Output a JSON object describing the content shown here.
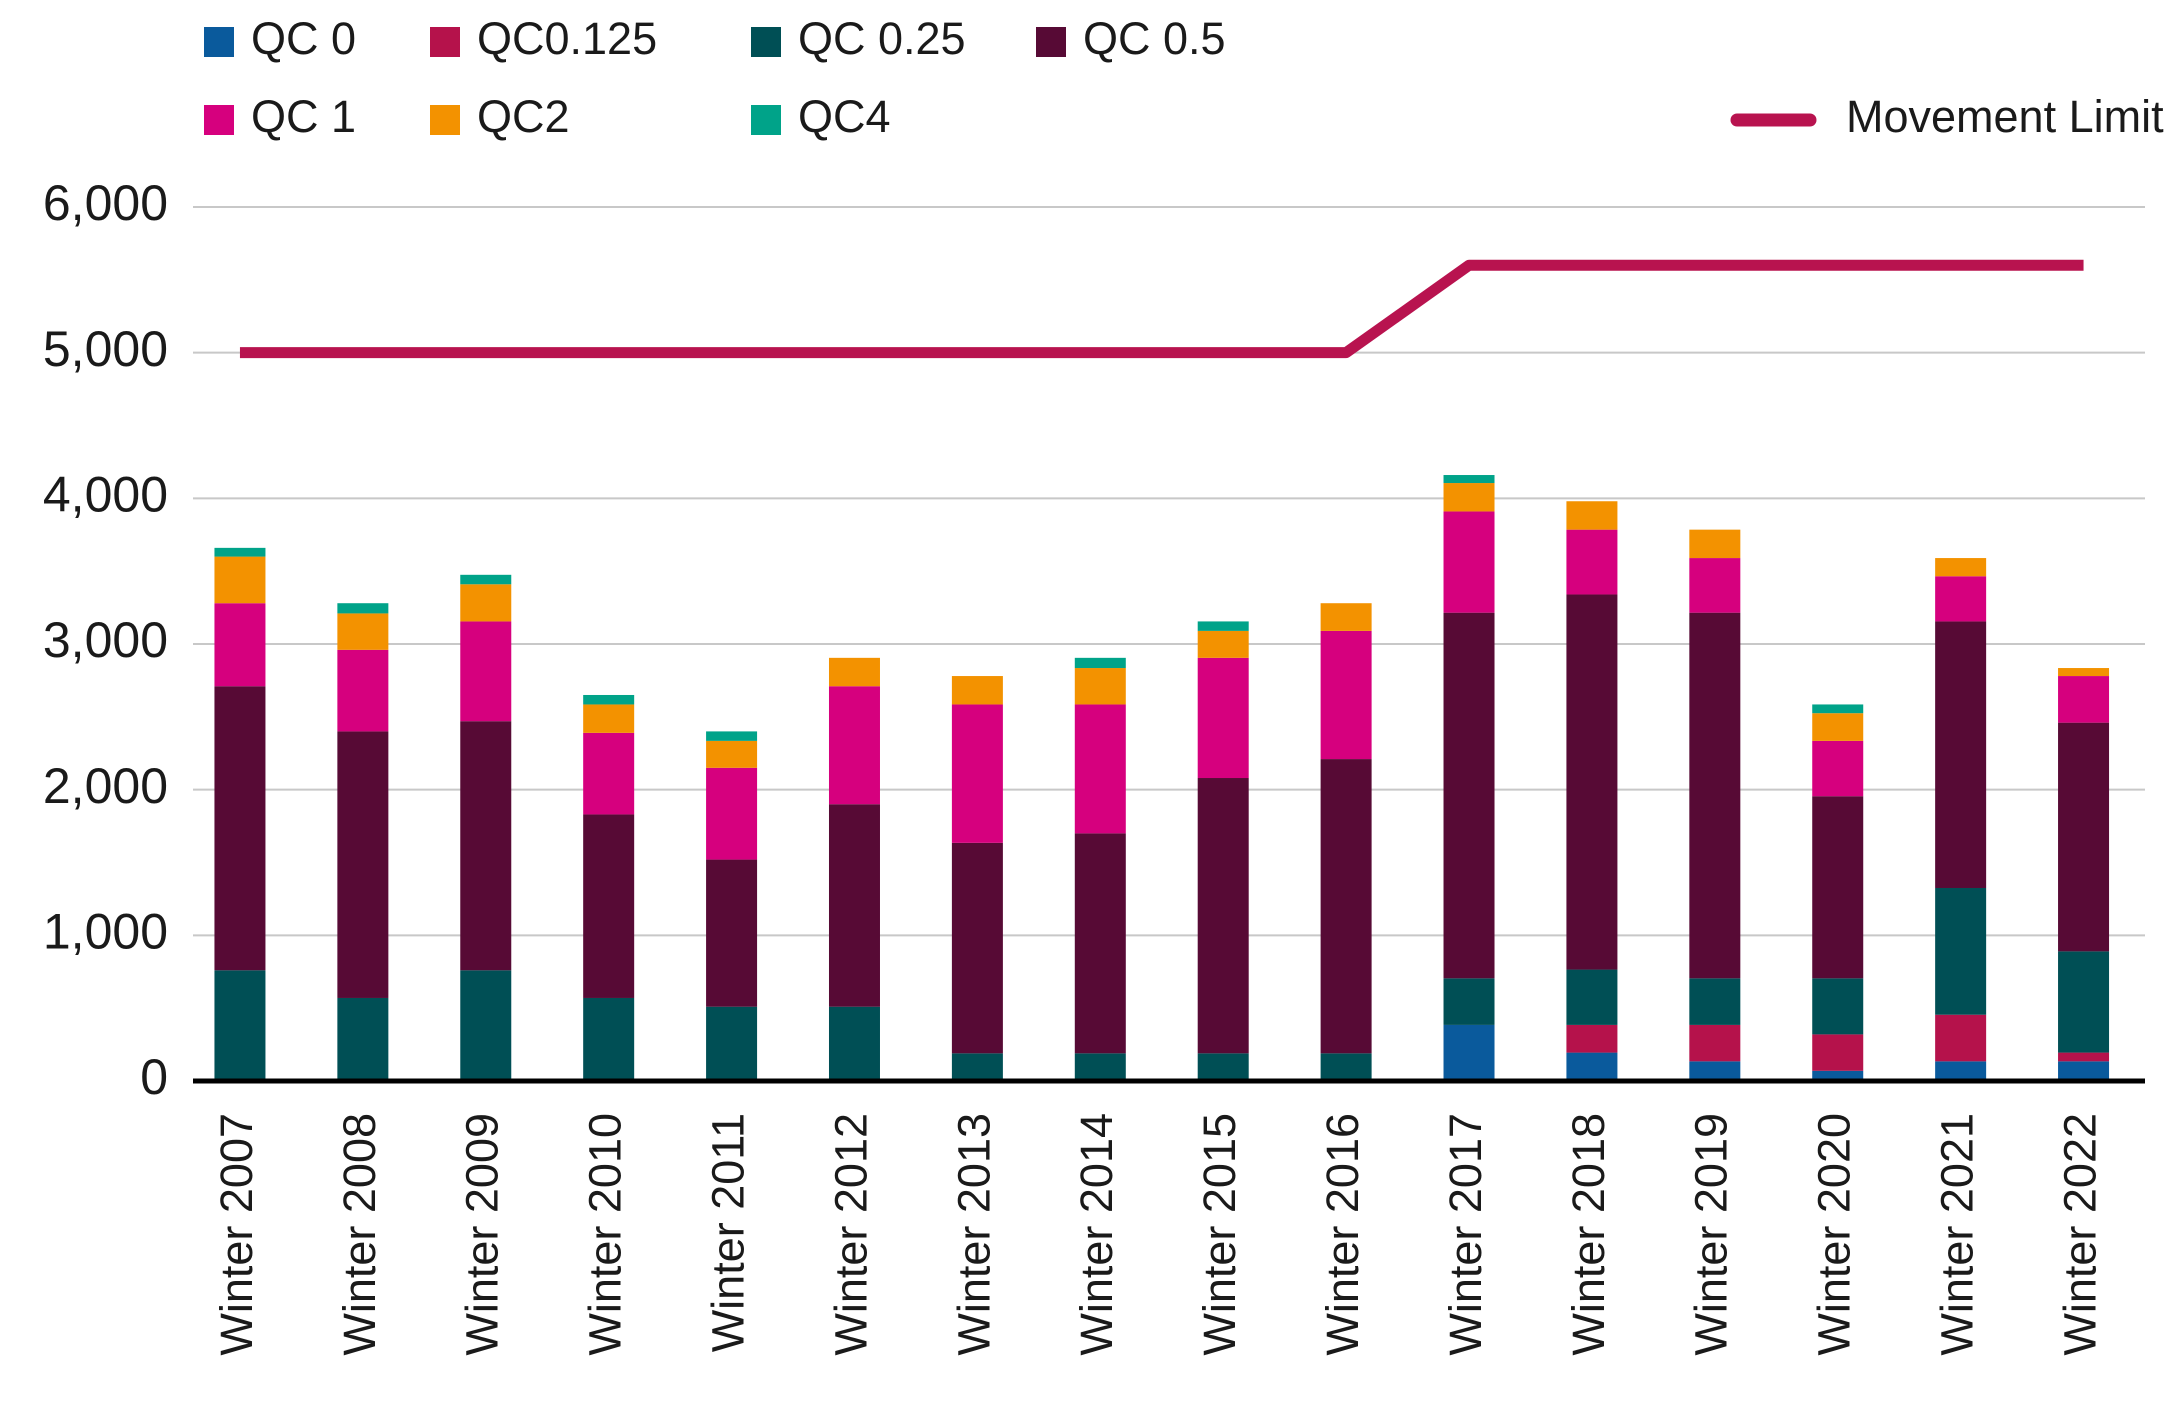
{
  "chart_data": {
    "type": "bar",
    "stacked": true,
    "categories": [
      "Winter 2007",
      "Winter 2008",
      "Winter 2009",
      "Winter 2010",
      "Winter 2011",
      "Winter 2012",
      "Winter 2013",
      "Winter 2014",
      "Winter 2015",
      "Winter 2016",
      "Winter 2017",
      "Winter 2018",
      "Winter 2019",
      "Winter 2020",
      "Winter 2021",
      "Winter 2022"
    ],
    "series": [
      {
        "name": "QC 0",
        "color": "#0a5a9c",
        "values": [
          0,
          0,
          0,
          0,
          0,
          0,
          0,
          0,
          0,
          0,
          385,
          195,
          135,
          70,
          135,
          135
        ]
      },
      {
        "name": "QC0.125",
        "color": "#b5124b",
        "values": [
          0,
          0,
          0,
          0,
          0,
          0,
          0,
          0,
          0,
          0,
          0,
          190,
          250,
          250,
          320,
          60
        ]
      },
      {
        "name": "QC 0.25",
        "color": "#004f55",
        "values": [
          760,
          570,
          760,
          570,
          510,
          510,
          190,
          190,
          190,
          190,
          320,
          380,
          320,
          385,
          870,
          695
        ]
      },
      {
        "name": "QC 0.5",
        "color": "#570a35",
        "values": [
          1950,
          1830,
          1710,
          1260,
          1010,
          1390,
          1445,
          1510,
          1890,
          2020,
          2510,
          2575,
          2510,
          1250,
          1830,
          1570
        ]
      },
      {
        "name": "QC 1",
        "color": "#d6007e",
        "values": [
          570,
          560,
          685,
          560,
          630,
          810,
          950,
          885,
          825,
          880,
          695,
          445,
          375,
          380,
          310,
          320
        ]
      },
      {
        "name": "QC2",
        "color": "#f39200",
        "values": [
          320,
          250,
          255,
          195,
          185,
          195,
          195,
          250,
          185,
          190,
          195,
          195,
          195,
          190,
          125,
          55
        ]
      },
      {
        "name": "QC4",
        "color": "#00a389",
        "values": [
          60,
          70,
          65,
          65,
          65,
          0,
          0,
          70,
          65,
          0,
          55,
          0,
          0,
          60,
          0,
          0
        ]
      },
      {
        "name": "Movement Limit",
        "color": "#b8134f",
        "type": "line",
        "values": [
          5000,
          5000,
          5000,
          5000,
          5000,
          5000,
          5000,
          5000,
          5000,
          5000,
          5600,
          5600,
          5600,
          5600,
          5600,
          5600
        ]
      }
    ],
    "ylim": [
      0,
      6000
    ],
    "yticks": [
      0,
      {
        "value": 1000,
        "label": "1,000"
      },
      {
        "value": 2000,
        "label": "2,000"
      },
      {
        "value": 3000,
        "label": "3,000"
      },
      {
        "value": 4000,
        "label": "4,000"
      },
      {
        "value": 5000,
        "label": "5,000"
      },
      {
        "value": 6000,
        "label": "6,000"
      }
    ],
    "grid": true
  }
}
